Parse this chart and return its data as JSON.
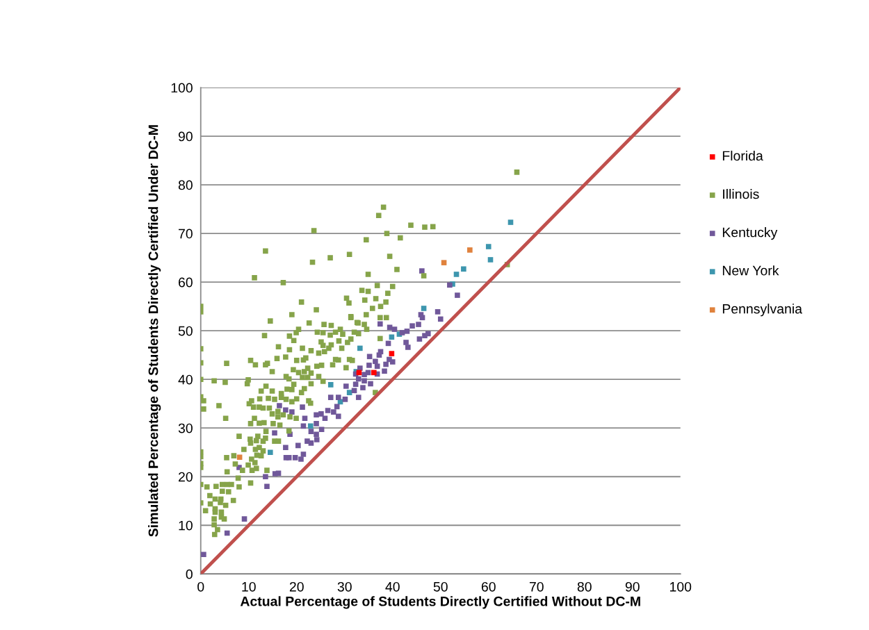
{
  "chart_data": {
    "type": "scatter",
    "xlabel": "Actual Percentage of Students Directly Certified Without DC-M",
    "ylabel": "Simulated Percentage of Students Directly Certified Under DC-M",
    "xlim": [
      0,
      100
    ],
    "ylim": [
      0,
      100
    ],
    "xticks": [
      0,
      10,
      20,
      30,
      40,
      50,
      60,
      70,
      80,
      90,
      100
    ],
    "yticks": [
      0,
      10,
      20,
      30,
      40,
      50,
      60,
      70,
      80,
      90,
      100
    ],
    "grid": "y",
    "legend": "right",
    "marker": "square",
    "series": [
      {
        "name": "Florida",
        "color": "#ff0000",
        "x": [
          39.8,
          36.1,
          33.0
        ],
        "values": [
          45.3,
          41.4,
          41.4
        ]
      },
      {
        "name": "Illinois",
        "color": "#86a44a",
        "x": [
          65.9,
          38.1,
          37.1,
          23.6,
          13.5,
          11.2,
          17.2,
          38.8,
          43.8,
          46.7,
          48.4,
          41.6,
          34.5,
          27.0,
          23.3,
          31.0,
          39.4,
          40.9,
          46.5,
          63.9,
          34.9,
          36.8,
          40.0,
          33.6,
          34.9,
          39.0,
          36.5,
          34.2,
          38.6,
          35.8,
          37.5,
          34.5,
          31.3,
          32.8,
          34.1,
          34.6,
          37.4,
          38.7,
          32.0,
          32.9,
          37.4,
          0,
          0,
          0,
          0,
          0,
          0,
          0.6,
          0.6,
          0,
          0,
          0,
          0,
          0,
          0,
          21.0,
          24.1,
          19.0,
          14.5,
          22.6,
          25.7,
          27.2,
          30.4,
          30.9,
          31.3,
          32.6,
          13.3,
          18.5,
          19.9,
          20.4,
          24.3,
          25.5,
          27.0,
          28.1,
          29.1,
          29.6,
          19.4,
          25.1,
          27.2,
          28.8,
          30.6,
          31.3,
          16.2,
          18.5,
          21.2,
          23.0,
          25.5,
          26.7,
          29.4,
          15.9,
          17.7,
          20.0,
          21.4,
          21.9,
          24.6,
          25.8,
          24.2,
          25.2,
          27.5,
          28.1,
          28.7,
          30.3,
          31.0,
          31.6,
          5.4,
          10.4,
          11.4,
          13.5,
          13.9,
          14.9,
          19.3,
          20.4,
          21.6,
          22.3,
          23.0,
          21.2,
          22.3,
          17.8,
          18.4,
          24.6,
          25.5,
          23.0,
          2.8,
          5.1,
          9.9,
          9.7,
          13.6,
          16.8,
          19.4,
          18.0,
          19.0,
          21.0,
          21.6,
          12.6,
          14.9,
          12.3,
          14.1,
          15.4,
          16.8,
          17.8,
          19.0,
          20.0,
          22.5,
          22.9,
          3.8,
          10.6,
          10.1,
          11.0,
          12.2,
          13.0,
          14.3,
          16.1,
          14.9,
          17.2,
          18.6,
          19.9,
          16.1,
          5.2,
          11.2,
          10.4,
          12.2,
          13.2,
          15.1,
          16.5,
          13.6,
          18.4,
          8.0,
          10.3,
          11.9,
          13.5,
          10.4,
          11.6,
          13.0,
          15.4,
          16.2,
          9.0,
          11.4,
          12.2,
          13.0,
          11.7,
          12.6,
          5.4,
          6.9,
          10.6,
          9.9,
          11.3,
          7.2,
          8.7,
          10.7,
          11.6,
          13.8,
          5.5,
          10.4,
          7.8,
          1.3,
          3.2,
          4.5,
          5.5,
          6.4,
          8.0,
          4.5,
          5.8,
          1.9,
          3.0,
          4.2,
          6.8,
          2.0,
          4.1,
          5.2,
          1.0,
          3.0,
          3.0,
          4.3,
          2.8,
          4.3,
          4.9,
          2.8,
          3.5,
          2.9,
          36.4
        ],
        "values": [
          82.6,
          75.4,
          73.7,
          70.6,
          66.4,
          60.9,
          59.9,
          70.0,
          71.7,
          71.3,
          71.4,
          69.1,
          68.7,
          65.0,
          64.1,
          65.7,
          65.3,
          62.6,
          61.3,
          63.6,
          61.6,
          59.3,
          59.1,
          58.3,
          58.1,
          57.7,
          56.6,
          56.3,
          55.9,
          54.6,
          55.0,
          53.3,
          52.7,
          51.6,
          51.3,
          50.3,
          52.7,
          52.7,
          49.7,
          49.4,
          48.4,
          55.0,
          53.9,
          46.3,
          43.4,
          40.0,
          36.4,
          35.6,
          33.9,
          25.1,
          24.1,
          22.7,
          21.9,
          18.4,
          14.6,
          55.9,
          54.3,
          53.3,
          52.0,
          51.6,
          51.3,
          51.1,
          56.7,
          55.7,
          52.9,
          51.7,
          49.0,
          48.9,
          49.6,
          50.3,
          49.7,
          49.6,
          49.1,
          49.7,
          50.3,
          49.3,
          48.0,
          47.7,
          47.1,
          47.9,
          47.6,
          48.3,
          46.7,
          46.1,
          46.4,
          45.9,
          47.0,
          46.4,
          46.4,
          44.3,
          44.6,
          43.9,
          44.0,
          44.4,
          45.4,
          45.7,
          42.7,
          42.9,
          43.0,
          44.1,
          44.0,
          42.4,
          44.1,
          43.9,
          43.3,
          43.9,
          43.0,
          43.0,
          43.3,
          41.6,
          42.0,
          41.4,
          41.6,
          42.3,
          41.3,
          40.4,
          40.4,
          40.6,
          40.1,
          40.6,
          39.6,
          39.1,
          39.7,
          39.4,
          39.9,
          39.1,
          38.6,
          37.1,
          39.0,
          38.0,
          37.9,
          37.3,
          38.1,
          37.6,
          37.6,
          36.0,
          36.1,
          35.9,
          36.3,
          35.9,
          35.4,
          36.0,
          35.6,
          35.1,
          34.6,
          35.6,
          35.0,
          34.3,
          34.3,
          34.1,
          34.1,
          33.4,
          32.9,
          32.7,
          32.3,
          32.0,
          32.3,
          32.0,
          32.0,
          30.9,
          31.0,
          31.1,
          30.9,
          30.6,
          29.3,
          29.4,
          28.3,
          27.7,
          28.3,
          27.9,
          26.9,
          27.4,
          27.3,
          27.3,
          27.3,
          25.6,
          25.6,
          26.0,
          25.3,
          24.4,
          24.3,
          23.9,
          24.3,
          23.6,
          22.4,
          22.9,
          22.6,
          21.3,
          21.3,
          21.7,
          21.3,
          21.0,
          18.7,
          19.7,
          17.9,
          18.0,
          18.4,
          18.4,
          18.4,
          17.9,
          17.0,
          16.9,
          16.1,
          15.4,
          15.4,
          15.1,
          14.4,
          14.7,
          14.1,
          13.0,
          13.4,
          12.7,
          12.7,
          11.3,
          11.7,
          11.3,
          10.1,
          9.1,
          8.1,
          37.3
        ]
      },
      {
        "name": "Kentucky",
        "color": "#70589a",
        "x": [
          46.1,
          51.9,
          53.5,
          49.4,
          50.0,
          45.9,
          46.2,
          37.4,
          39.4,
          40.4,
          44.1,
          45.4,
          43.0,
          42.0,
          47.4,
          46.7,
          42.8,
          43.2,
          45.6,
          39.1,
          37.5,
          37.2,
          35.2,
          39.3,
          40.0,
          36.4,
          38.6,
          35.1,
          36.8,
          38.3,
          36.8,
          34.9,
          33.2,
          34.1,
          32.3,
          34.1,
          32.9,
          32.3,
          35.4,
          33.8,
          32.0,
          32.9,
          30.3,
          27.1,
          28.7,
          30.1,
          28.4,
          26.5,
          27.7,
          28.7,
          24.1,
          25.1,
          25.9,
          21.7,
          21.2,
          16.4,
          17.7,
          19.0,
          21.4,
          23.0,
          24.1,
          25.2,
          24.1,
          15.4,
          18.6,
          22.2,
          23.0,
          24.2,
          20.3,
          17.7,
          21.4,
          20.9,
          19.7,
          17.8,
          18.4,
          8.0,
          13.5,
          15.5,
          16.2,
          13.8,
          9.1,
          5.5,
          0.6
        ],
        "values": [
          62.3,
          59.4,
          57.3,
          53.9,
          52.4,
          53.3,
          52.7,
          51.4,
          50.7,
          50.3,
          51.0,
          51.3,
          49.9,
          49.6,
          49.4,
          49.0,
          47.6,
          46.6,
          48.3,
          47.4,
          45.7,
          45.0,
          44.7,
          44.1,
          43.6,
          43.7,
          43.1,
          42.9,
          42.7,
          41.7,
          41.1,
          41.4,
          42.3,
          41.0,
          41.1,
          39.7,
          40.1,
          39.0,
          39.1,
          38.3,
          37.7,
          36.3,
          38.6,
          36.3,
          36.3,
          35.9,
          34.4,
          33.6,
          33.3,
          32.4,
          32.7,
          32.9,
          32.0,
          32.0,
          34.3,
          34.6,
          33.7,
          33.3,
          30.4,
          29.3,
          28.7,
          29.7,
          30.9,
          29.0,
          28.7,
          27.3,
          26.9,
          27.6,
          26.4,
          26.0,
          24.6,
          23.6,
          23.9,
          23.9,
          23.9,
          21.9,
          20.0,
          20.6,
          20.7,
          18.0,
          11.3,
          8.4,
          4.0
        ]
      },
      {
        "name": "New York",
        "color": "#3d96ae",
        "x": [
          64.6,
          60.0,
          60.4,
          54.8,
          53.3,
          52.5,
          46.5,
          39.8,
          41.4,
          33.2,
          32.4,
          31.0,
          27.1,
          29.1,
          22.9,
          14.5
        ],
        "values": [
          72.3,
          67.3,
          64.6,
          62.7,
          61.6,
          59.6,
          54.6,
          48.7,
          49.3,
          46.4,
          41.6,
          37.3,
          38.9,
          35.4,
          30.4,
          25.0
        ]
      },
      {
        "name": "Pennsylvania",
        "color": "#e0823d",
        "x": [
          56.1,
          50.7,
          8.1
        ],
        "values": [
          66.6,
          64.0,
          24.0
        ]
      },
      {
        "type": "line",
        "marker": "none",
        "color": "#c0504d",
        "x": [
          0,
          100
        ],
        "values": [
          0,
          100
        ]
      }
    ]
  }
}
